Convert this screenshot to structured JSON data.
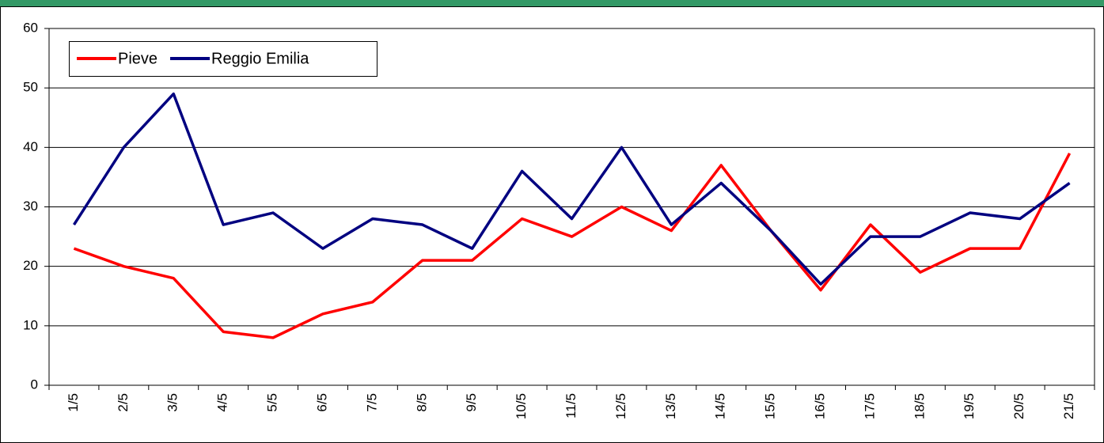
{
  "chart_data": {
    "type": "line",
    "categories": [
      "1/5",
      "2/5",
      "3/5",
      "4/5",
      "5/5",
      "6/5",
      "7/5",
      "8/5",
      "9/5",
      "10/5",
      "11/5",
      "12/5",
      "13/5",
      "14/5",
      "15/5",
      "16/5",
      "17/5",
      "18/5",
      "19/5",
      "20/5",
      "21/5"
    ],
    "series": [
      {
        "name": "Pieve",
        "color": "#ff0000",
        "values": [
          23,
          20,
          18,
          9,
          8,
          12,
          14,
          21,
          21,
          28,
          25,
          30,
          26,
          37,
          26,
          16,
          27,
          19,
          23,
          23,
          39
        ]
      },
      {
        "name": "Reggio Emilia",
        "color": "#000080",
        "values": [
          27,
          40,
          49,
          27,
          29,
          23,
          28,
          27,
          23,
          36,
          28,
          40,
          27,
          34,
          26,
          17,
          25,
          25,
          29,
          28,
          34
        ]
      }
    ],
    "ylim": [
      0,
      60
    ],
    "yticks": [
      0,
      10,
      20,
      30,
      40,
      50,
      60
    ],
    "grid": true,
    "legend": "top-left"
  }
}
